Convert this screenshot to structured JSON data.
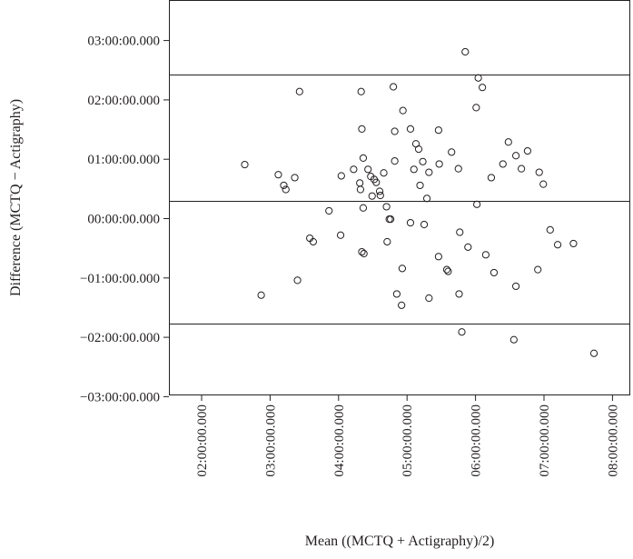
{
  "chart_data": {
    "type": "scatter",
    "title": "",
    "xlabel": "Mean ((MCTQ + Actigraphy)/2)",
    "ylabel": "Difference (MCTQ − Actigraphy)",
    "x_unit": "hours",
    "y_unit": "hours",
    "xlim": [
      1.55,
      8.3
    ],
    "ylim": [
      -3.0,
      3.6
    ],
    "x_ticks": [
      2,
      3,
      4,
      5,
      6,
      7,
      8
    ],
    "x_tick_labels": [
      "02:00:00.000",
      "03:00:00.000",
      "04:00:00.000",
      "05:00:00.000",
      "06:00:00.000",
      "07:00:00.000",
      "08:00:00.000"
    ],
    "y_ticks": [
      3,
      2,
      1,
      0,
      -1,
      -2,
      -3
    ],
    "y_tick_labels": [
      "03:00:00.000",
      "02:00:00.000",
      "01:00:00.000",
      "00:00:00.000",
      "−01:00:00.000",
      "−02:00:00.000",
      "−03:00:00.000"
    ],
    "reference_lines": [
      {
        "name": "upper limit of agreement",
        "y": 2.43
      },
      {
        "name": "mean difference",
        "y": 0.3
      },
      {
        "name": "lower limit of agreement",
        "y": -1.77
      }
    ],
    "grid": false,
    "legend": "none",
    "marker": "open circle",
    "points": [
      {
        "x": 2.63,
        "y": 0.91
      },
      {
        "x": 2.87,
        "y": -1.29
      },
      {
        "x": 3.12,
        "y": 0.74
      },
      {
        "x": 3.2,
        "y": 0.56
      },
      {
        "x": 3.23,
        "y": 0.49
      },
      {
        "x": 3.36,
        "y": 0.69
      },
      {
        "x": 3.43,
        "y": 2.14
      },
      {
        "x": 3.4,
        "y": -1.04
      },
      {
        "x": 3.58,
        "y": -0.33
      },
      {
        "x": 3.63,
        "y": -0.39
      },
      {
        "x": 3.86,
        "y": 0.13
      },
      {
        "x": 4.03,
        "y": -0.28
      },
      {
        "x": 4.04,
        "y": 0.72
      },
      {
        "x": 4.22,
        "y": 0.83
      },
      {
        "x": 4.31,
        "y": 0.6
      },
      {
        "x": 4.32,
        "y": 0.49
      },
      {
        "x": 4.33,
        "y": 2.14
      },
      {
        "x": 4.34,
        "y": 1.51
      },
      {
        "x": 4.36,
        "y": 1.02
      },
      {
        "x": 4.36,
        "y": 0.18
      },
      {
        "x": 4.34,
        "y": -0.56
      },
      {
        "x": 4.37,
        "y": -0.59
      },
      {
        "x": 4.43,
        "y": 0.83
      },
      {
        "x": 4.47,
        "y": 0.71
      },
      {
        "x": 4.49,
        "y": 0.38
      },
      {
        "x": 4.52,
        "y": 0.66
      },
      {
        "x": 4.55,
        "y": 0.61
      },
      {
        "x": 4.6,
        "y": 0.46
      },
      {
        "x": 4.61,
        "y": 0.39
      },
      {
        "x": 4.66,
        "y": 0.77
      },
      {
        "x": 4.7,
        "y": 0.2
      },
      {
        "x": 4.71,
        "y": -0.39
      },
      {
        "x": 4.74,
        "y": -0.01
      },
      {
        "x": 4.76,
        "y": -0.01
      },
      {
        "x": 4.8,
        "y": 2.22
      },
      {
        "x": 4.82,
        "y": 1.47
      },
      {
        "x": 4.82,
        "y": 0.97
      },
      {
        "x": 4.85,
        "y": -1.27
      },
      {
        "x": 4.93,
        "y": -0.84
      },
      {
        "x": 4.92,
        "y": -1.46
      },
      {
        "x": 4.94,
        "y": 1.82
      },
      {
        "x": 5.05,
        "y": 1.51
      },
      {
        "x": 5.05,
        "y": -0.07
      },
      {
        "x": 5.1,
        "y": 0.83
      },
      {
        "x": 5.13,
        "y": 1.26
      },
      {
        "x": 5.17,
        "y": 1.17
      },
      {
        "x": 5.19,
        "y": 0.56
      },
      {
        "x": 5.23,
        "y": 0.96
      },
      {
        "x": 5.25,
        "y": -0.1
      },
      {
        "x": 5.29,
        "y": 0.34
      },
      {
        "x": 5.32,
        "y": 0.78
      },
      {
        "x": 5.32,
        "y": -1.34
      },
      {
        "x": 5.46,
        "y": 1.49
      },
      {
        "x": 5.47,
        "y": 0.92
      },
      {
        "x": 5.46,
        "y": -0.64
      },
      {
        "x": 5.58,
        "y": -0.86
      },
      {
        "x": 5.6,
        "y": -0.89
      },
      {
        "x": 5.65,
        "y": 1.12
      },
      {
        "x": 5.75,
        "y": 0.84
      },
      {
        "x": 5.77,
        "y": -0.23
      },
      {
        "x": 5.76,
        "y": -1.27
      },
      {
        "x": 5.8,
        "y": -1.91
      },
      {
        "x": 5.85,
        "y": 2.81
      },
      {
        "x": 5.89,
        "y": -0.48
      },
      {
        "x": 6.01,
        "y": 1.87
      },
      {
        "x": 6.02,
        "y": 0.24
      },
      {
        "x": 6.04,
        "y": 2.37
      },
      {
        "x": 6.1,
        "y": 2.21
      },
      {
        "x": 6.15,
        "y": -0.61
      },
      {
        "x": 6.23,
        "y": 0.69
      },
      {
        "x": 6.27,
        "y": -0.91
      },
      {
        "x": 6.4,
        "y": 0.92
      },
      {
        "x": 6.48,
        "y": 1.29
      },
      {
        "x": 6.56,
        "y": -2.04
      },
      {
        "x": 6.59,
        "y": 1.06
      },
      {
        "x": 6.59,
        "y": -1.14
      },
      {
        "x": 6.67,
        "y": 0.84
      },
      {
        "x": 6.76,
        "y": 1.14
      },
      {
        "x": 6.91,
        "y": -0.86
      },
      {
        "x": 6.93,
        "y": 0.78
      },
      {
        "x": 6.99,
        "y": 0.58
      },
      {
        "x": 7.09,
        "y": -0.19
      },
      {
        "x": 7.2,
        "y": -0.44
      },
      {
        "x": 7.43,
        "y": -0.42
      },
      {
        "x": 7.73,
        "y": -2.27
      }
    ]
  }
}
